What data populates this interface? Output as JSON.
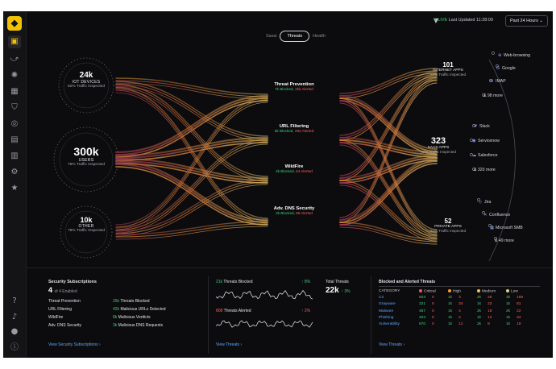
{
  "sidebar": {
    "icons": [
      "logo-icon",
      "dashboard-icon",
      "network-icon",
      "settings-gear-icon",
      "apps-grid-icon",
      "shield-icon",
      "target-icon",
      "server-icon",
      "chart-icon",
      "cog-icon",
      "star-icon",
      "help-icon",
      "bell-icon",
      "user-icon",
      "info-icon"
    ]
  },
  "topbar": {
    "live_label": "LIVE",
    "updated": "Last Updated 11:28:00",
    "range": "Past 24 Hours"
  },
  "toggle": {
    "left": "Sassi",
    "center": "Threats",
    "right": "Health"
  },
  "sources": [
    {
      "value": "24k",
      "label": "IOT DEVICES",
      "sub": "82% Traffic Inspected"
    },
    {
      "value": "300k",
      "label": "USERS",
      "sub": "76% Traffic Inspected"
    },
    {
      "value": "10k",
      "label": "OTHER",
      "sub": "78% Traffic Inspected"
    }
  ],
  "services": [
    {
      "name": "Threat Prevention",
      "blocked": "7k Blocked,",
      "alerted": "2kk Alerted"
    },
    {
      "name": "URL Filtering",
      "blocked": "6k Blocked,",
      "alerted": "292 Alerted"
    },
    {
      "name": "WildFire",
      "blocked": "3k Blocked,",
      "alerted": "64 Alerted"
    },
    {
      "name": "Adv. DNS Security",
      "blocked": "3k Blocked,",
      "alerted": "88 Alerted"
    }
  ],
  "apps": [
    {
      "value": "101",
      "label": "INTERNET APPS",
      "sub": "72% Traffic Inspected"
    },
    {
      "value": "323",
      "label": "SAAS APPS",
      "sub": "82% Traffic Inspected"
    },
    {
      "value": "52",
      "label": "PRIVATE APPS",
      "sub": "94% Traffic Inspected"
    }
  ],
  "leaves": {
    "internet": [
      "Web-browsing",
      "Google",
      "IMAP",
      "& 98 more"
    ],
    "saas": [
      "Slack",
      "Servicenow",
      "Salesforce",
      "& 320 more"
    ],
    "private": [
      "Jira",
      "Confluence",
      "Microsoft SMB",
      "& 49 more"
    ]
  },
  "subscriptions": {
    "title": "Security Subscriptions",
    "count": "4",
    "count_sub": "of 4 Enabled",
    "rows": [
      {
        "name": "Threat Prevention",
        "value": "25k",
        "desc": "Threats Blocked"
      },
      {
        "name": "URL Filtering",
        "value": "42k",
        "desc": "Malicious URLs Detected"
      },
      {
        "name": "WildFire",
        "value": "8k",
        "desc": "Malicious Verdicts"
      },
      {
        "name": "Adv. DNS Security",
        "value": "3k",
        "desc": "Malicious DNS Requests"
      }
    ],
    "link": "View Security Subscriptions ›"
  },
  "threats_summary": {
    "blocked_value": "21k",
    "blocked_label": "Threats Blocked",
    "blocked_change": "↑ 8%",
    "alerted_value": "808",
    "alerted_label": "Threats Alerted",
    "alerted_change": "↑ 2%",
    "total_label": "Total Threats",
    "total_value": "22k",
    "total_change": "↑ 3%",
    "link": "View Threats ›"
  },
  "threat_table": {
    "title": "Blocked and Alerted Threats",
    "headers": [
      "CATEGORY",
      "Critical",
      "High",
      "Medium",
      "Low"
    ],
    "header_colors": [
      "",
      "#ff4d6d",
      "#ff9933",
      "#f5c542",
      "#d9d27a"
    ],
    "rows": [
      {
        "cat": "C2",
        "v": [
          "503",
          "0",
          "1k",
          "3",
          "2k",
          "48",
          "3k",
          "189"
        ]
      },
      {
        "cat": "Grayware",
        "v": [
          "321",
          "0",
          "1k",
          "34",
          "1k",
          "23",
          "1k",
          "81"
        ]
      },
      {
        "cat": "Malware",
        "v": [
          "487",
          "0",
          "1k",
          "4",
          "2k",
          "18",
          "2k",
          "22"
        ]
      },
      {
        "cat": "Phishing",
        "v": [
          "403",
          "0",
          "1k",
          "4",
          "1k",
          "12",
          "1k",
          "34"
        ]
      },
      {
        "cat": "Vulnerability",
        "v": [
          "670",
          "0",
          "1k",
          "12",
          "2k",
          "8",
          "1k",
          "19"
        ]
      }
    ],
    "link": "View Threats ›"
  }
}
